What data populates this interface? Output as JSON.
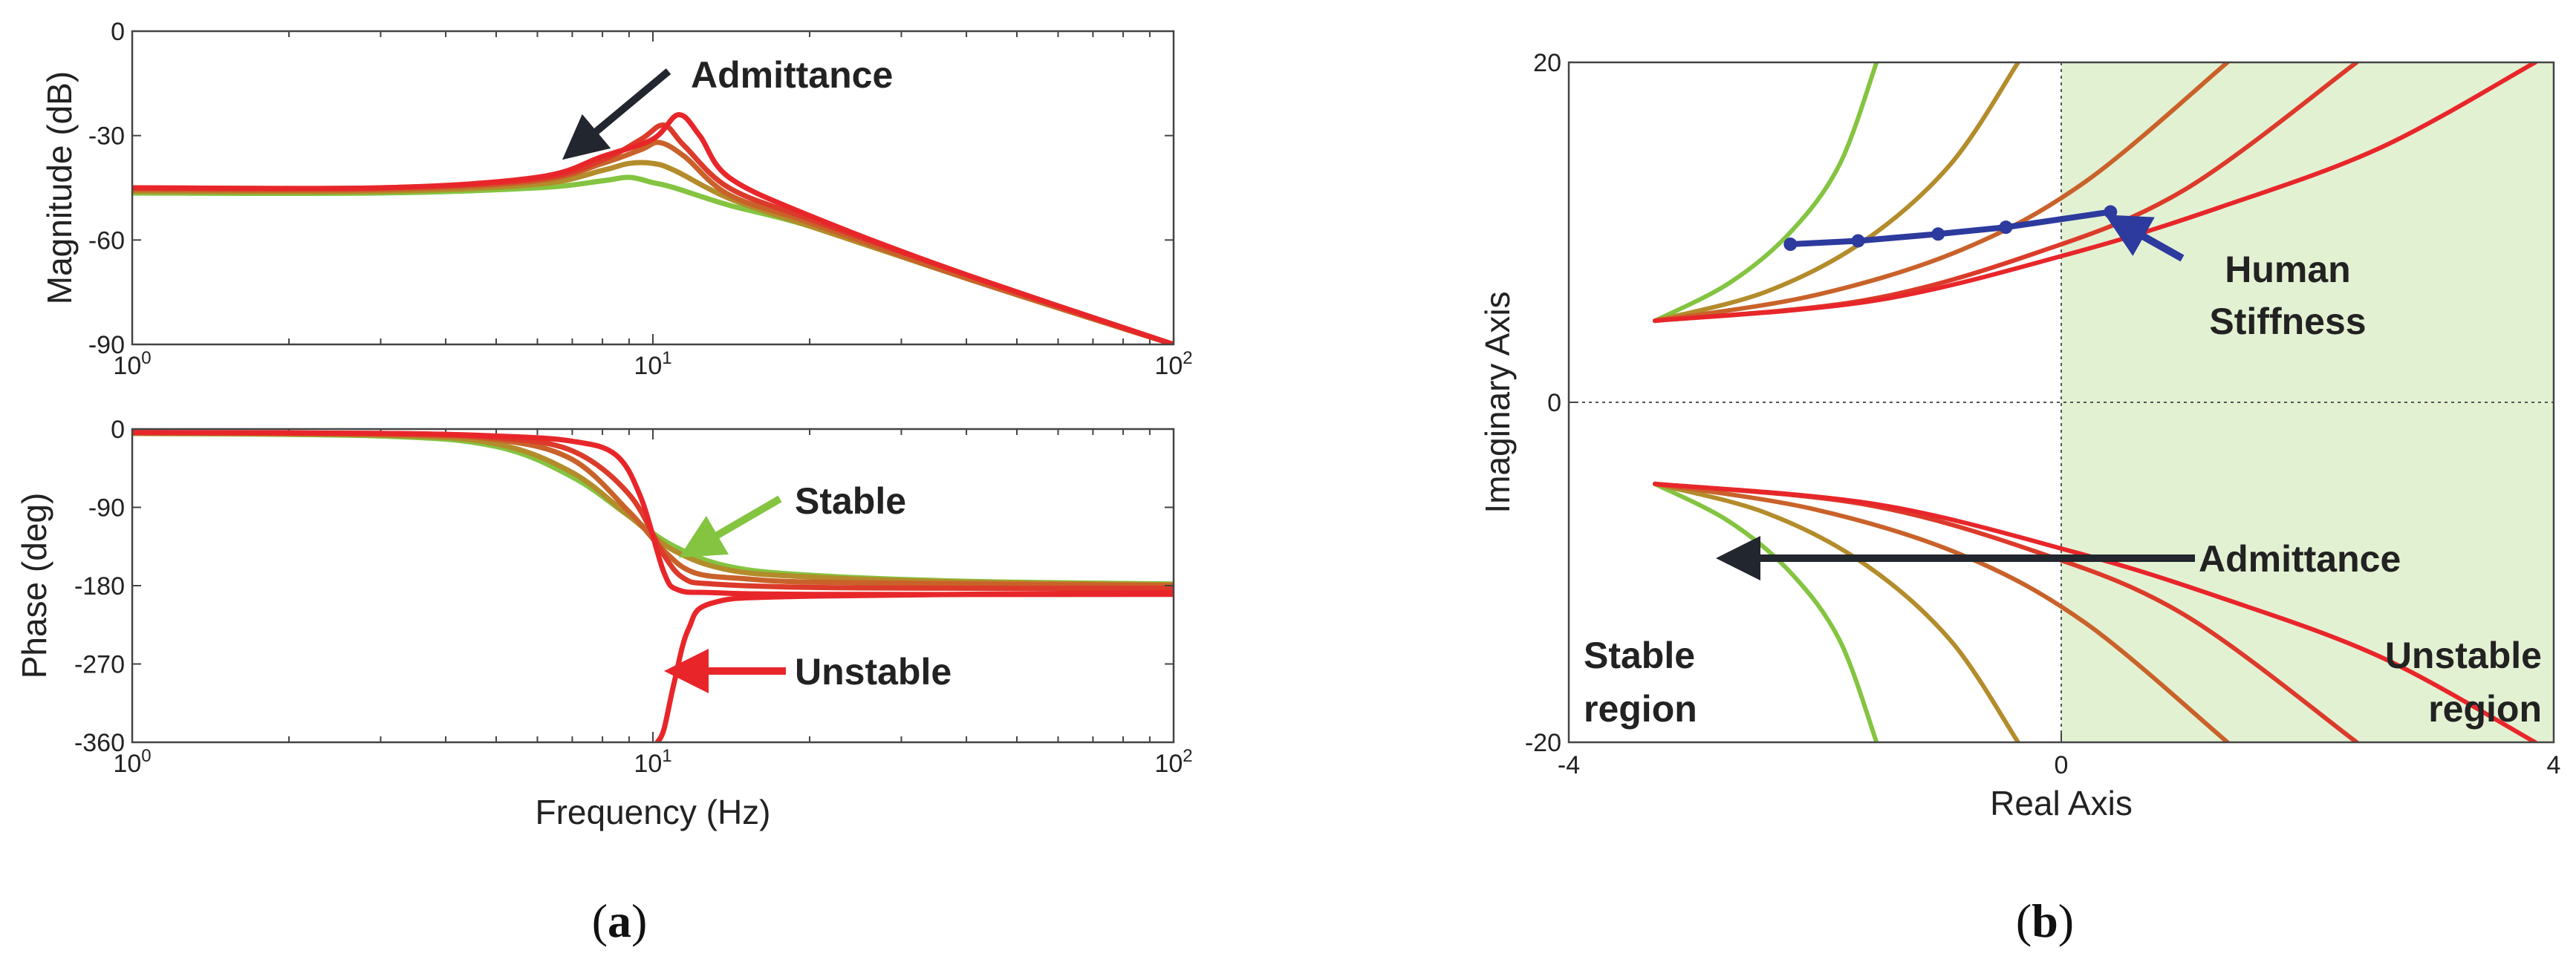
{
  "colors": [
    "#84c441",
    "#b38c2b",
    "#c9622a",
    "#dc3a2a",
    "#e8262a"
  ],
  "arrow_colors": {
    "dark": "#22262e",
    "stable": "#84c441",
    "unstable": "#e8262a",
    "human": "#2d3a9e"
  },
  "region_fill": "#e3f1d3",
  "chart_data": [
    {
      "id": "a_magnitude",
      "type": "line",
      "xscale": "log",
      "xlim": [
        1,
        100
      ],
      "ylim": [
        -90,
        0
      ],
      "yticks": [
        0,
        -30,
        -60,
        -90
      ],
      "ylabel": "Magnitude (dB)",
      "tick_base": "10",
      "xtick_exponents": [
        "0",
        "1",
        "2"
      ],
      "annotation": "Admittance",
      "series": [
        {
          "name": "1",
          "x": [
            1,
            3,
            6,
            8,
            9,
            10,
            11,
            14,
            20,
            40,
            100
          ],
          "y": [
            -46.5,
            -46.5,
            -45,
            -43,
            -42,
            -43.5,
            -45,
            -50,
            -56,
            -71,
            -90
          ]
        },
        {
          "name": "2",
          "x": [
            1,
            3,
            6,
            8,
            9,
            10,
            11,
            14,
            20,
            40,
            100
          ],
          "y": [
            -46,
            -46,
            -44,
            -40,
            -38,
            -38,
            -40,
            -48,
            -56,
            -71,
            -90
          ]
        },
        {
          "name": "3",
          "x": [
            1,
            3,
            6,
            8,
            9.5,
            10.3,
            11.5,
            14,
            20,
            40,
            100
          ],
          "y": [
            -45.5,
            -45.5,
            -43,
            -38,
            -34,
            -32,
            -36,
            -47,
            -55,
            -71,
            -90
          ]
        },
        {
          "name": "4",
          "x": [
            1,
            3,
            6,
            8,
            9.5,
            10.5,
            11.5,
            14,
            20,
            40,
            100
          ],
          "y": [
            -45,
            -45,
            -42.5,
            -37,
            -31,
            -27,
            -33,
            -45,
            -54,
            -70,
            -90
          ]
        },
        {
          "name": "5",
          "x": [
            1,
            3,
            6,
            8,
            10,
            11.2,
            12.3,
            14,
            20,
            40,
            100
          ],
          "y": [
            -45,
            -45,
            -42,
            -36,
            -31,
            -24,
            -30,
            -42,
            -53,
            -70,
            -90
          ]
        }
      ]
    },
    {
      "id": "a_phase",
      "type": "line",
      "xscale": "log",
      "xlim": [
        1,
        100
      ],
      "ylim": [
        -360,
        0
      ],
      "yticks": [
        0,
        -90,
        -180,
        -270,
        -360
      ],
      "ylabel": "Phase (deg)",
      "xlabel": "Frequency (Hz)",
      "tick_base": "10",
      "xtick_exponents": [
        "0",
        "1",
        "2"
      ],
      "annotations": [
        "Stable",
        "Unstable"
      ],
      "series": [
        {
          "name": "1",
          "x": [
            1,
            3,
            5,
            7,
            9,
            11,
            14,
            20,
            40,
            100
          ],
          "y": [
            -5,
            -8,
            -20,
            -55,
            -100,
            -135,
            -158,
            -168,
            -175,
            -178
          ]
        },
        {
          "name": "2",
          "x": [
            1,
            3,
            5,
            7,
            9,
            11,
            14,
            20,
            40,
            100
          ],
          "y": [
            -5,
            -7,
            -17,
            -50,
            -100,
            -140,
            -162,
            -170,
            -176,
            -179
          ]
        },
        {
          "name": "3",
          "x": [
            1,
            3,
            5,
            7,
            9,
            10.5,
            12,
            15,
            20,
            40,
            100
          ],
          "y": [
            -4,
            -6,
            -12,
            -35,
            -95,
            -140,
            -165,
            -172,
            -176,
            -178,
            -180
          ]
        },
        {
          "name": "4",
          "x": [
            1,
            3,
            5,
            7,
            9,
            10.5,
            11.5,
            13,
            20,
            40,
            100
          ],
          "y": [
            -4,
            -5,
            -10,
            -25,
            -75,
            -145,
            -172,
            -178,
            -182,
            -183,
            -183
          ]
        },
        {
          "name": "5",
          "x": [
            1,
            3,
            5,
            7,
            8.5,
            9.5,
            10.5,
            11.2,
            13,
            20,
            100
          ],
          "y": [
            -4,
            -5,
            -8,
            -14,
            -30,
            -80,
            -165,
            -185,
            -188,
            -190,
            -190
          ]
        },
        {
          "name": "5-wrapped",
          "x": [
            10.2,
            10.5,
            11,
            11.7,
            13,
            20,
            100
          ],
          "y": [
            -360,
            -345,
            -290,
            -230,
            -200,
            -192,
            -188
          ]
        }
      ]
    },
    {
      "id": "b_root_locus",
      "type": "line",
      "xlim": [
        -4,
        4
      ],
      "ylim": [
        -20,
        20
      ],
      "xticks": [
        -4,
        0,
        4
      ],
      "yticks": [
        20,
        0,
        -20
      ],
      "xlabel": "Real Axis",
      "ylabel": "Imaginary Axis",
      "annotations": [
        "Human",
        "Stiffness",
        "Admittance",
        "Stable",
        "region",
        "Unstable",
        "region"
      ],
      "series": [
        {
          "name": "1",
          "x": [
            -3.3,
            -2.7,
            -2.2,
            -1.8,
            -1.5
          ],
          "y": [
            4.8,
            7,
            10,
            14,
            20
          ]
        },
        {
          "name": "2",
          "x": [
            -3.3,
            -2.4,
            -1.6,
            -0.9,
            -0.35
          ],
          "y": [
            4.8,
            6.5,
            9.5,
            14,
            20
          ]
        },
        {
          "name": "3",
          "x": [
            -3.3,
            -2.0,
            -0.8,
            0.2,
            1.35
          ],
          "y": [
            4.8,
            6.3,
            9,
            13,
            20
          ]
        },
        {
          "name": "4",
          "x": [
            -3.3,
            -1.6,
            -0.2,
            1.0,
            2.4
          ],
          "y": [
            4.8,
            6,
            8.8,
            12.5,
            20
          ]
        },
        {
          "name": "5",
          "x": [
            -3.3,
            -1.5,
            0.1,
            1.3,
            2.6,
            3.85
          ],
          "y": [
            4.8,
            6,
            8.8,
            11.5,
            15,
            20
          ]
        }
      ],
      "human_stiffness": {
        "x": [
          -2.2,
          -1.65,
          -1.0,
          -0.45,
          0.4
        ],
        "y": [
          9.3,
          9.5,
          9.9,
          10.3,
          11.2
        ]
      }
    }
  ],
  "panel_labels": {
    "a_open": "(",
    "a_letter": "a",
    "a_close": ")",
    "b_open": "(",
    "b_letter": "b",
    "b_close": ")"
  }
}
